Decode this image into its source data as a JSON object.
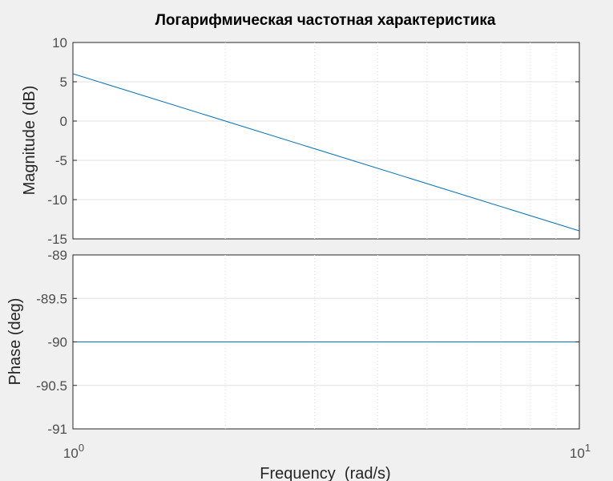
{
  "chart_data": {
    "type": "line",
    "title": "Логарифмическая частотная характеристика",
    "xlabel": "Frequency  (rad/s)",
    "x_scale": "log",
    "xlim": [
      1,
      10
    ],
    "x_tick_labels": [
      {
        "base": "10",
        "exp": "0"
      },
      {
        "base": "10",
        "exp": "1"
      }
    ],
    "grid": true,
    "line_color": "#0072bd",
    "panels": [
      {
        "name": "magnitude",
        "ylabel": "Magnitude (dB)",
        "ylim": [
          -15,
          10
        ],
        "yticks": [
          10,
          5,
          0,
          -5,
          -10,
          -15
        ],
        "ytick_labels": [
          "10",
          "5",
          "0",
          "-5",
          "-10",
          "-15"
        ],
        "series": [
          {
            "x": [
              1,
              10
            ],
            "y": [
              6.02,
              -13.98
            ]
          }
        ]
      },
      {
        "name": "phase",
        "ylabel": "Phase (deg)",
        "ylim": [
          -91,
          -89
        ],
        "yticks": [
          -89,
          -89.5,
          -90,
          -90.5,
          -91
        ],
        "ytick_labels": [
          "-89",
          "-89.5",
          "-90",
          "-90.5",
          "-91"
        ],
        "series": [
          {
            "x": [
              1,
              10
            ],
            "y": [
              -90,
              -90
            ]
          }
        ]
      }
    ]
  }
}
